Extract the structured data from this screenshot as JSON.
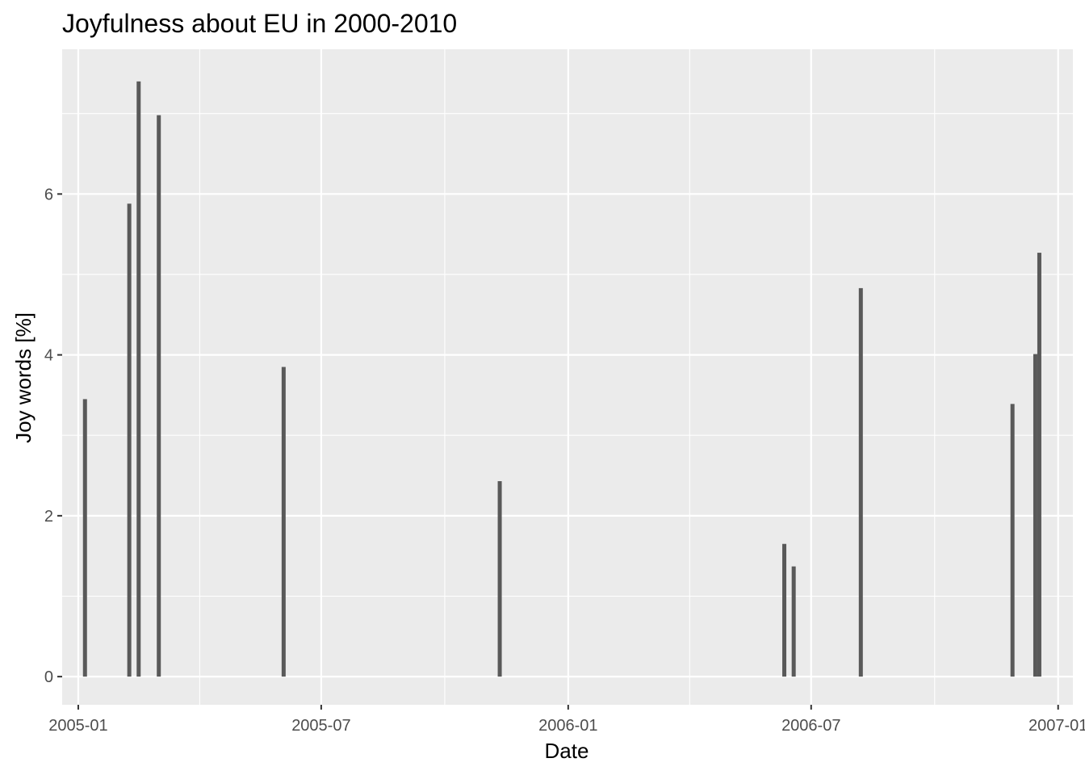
{
  "chart_data": {
    "type": "bar",
    "title": "Joyfulness about EU in 2000-2010",
    "xlabel": "Date",
    "ylabel": "Joy words [%]",
    "xlim": [
      "2004-12-20",
      "2007-01-12"
    ],
    "ylim": [
      -0.35,
      7.8
    ],
    "x_ticks": [
      {
        "value": "2005-01-01",
        "label": "2005-01"
      },
      {
        "value": "2005-07-01",
        "label": "2005-07"
      },
      {
        "value": "2006-01-01",
        "label": "2006-01"
      },
      {
        "value": "2006-07-01",
        "label": "2006-07"
      },
      {
        "value": "2007-01-01",
        "label": "2007-01"
      }
    ],
    "y_ticks": [
      0,
      2,
      4,
      6
    ],
    "y_minor_ticks": [
      1,
      3,
      5,
      7
    ],
    "grid": true,
    "panel_background": "#ebebeb",
    "bar_color": "#595959",
    "points": [
      {
        "x": "2005-01-06",
        "y": 3.45
      },
      {
        "x": "2005-02-08",
        "y": 5.88
      },
      {
        "x": "2005-02-15",
        "y": 7.4
      },
      {
        "x": "2005-03-02",
        "y": 6.98
      },
      {
        "x": "2005-06-03",
        "y": 3.85
      },
      {
        "x": "2005-11-11",
        "y": 2.43
      },
      {
        "x": "2006-06-11",
        "y": 1.65
      },
      {
        "x": "2006-06-18",
        "y": 1.37
      },
      {
        "x": "2006-08-07",
        "y": 4.83
      },
      {
        "x": "2006-11-28",
        "y": 3.39
      },
      {
        "x": "2006-12-15",
        "y": 4.01
      },
      {
        "x": "2006-12-18",
        "y": 5.27
      }
    ]
  }
}
